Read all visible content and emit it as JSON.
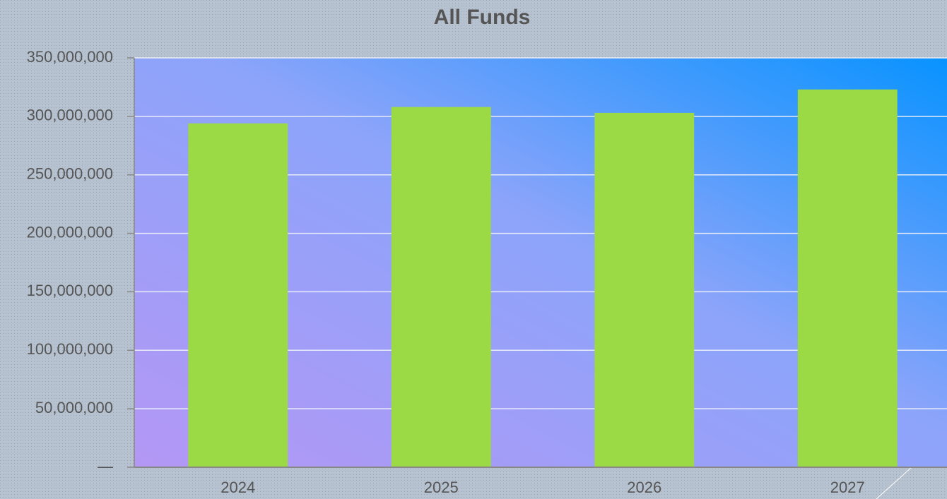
{
  "chart_data": {
    "type": "bar",
    "title": "All Funds",
    "categories": [
      "2024",
      "2025",
      "2026",
      "2027"
    ],
    "values": [
      294000000,
      308000000,
      303000000,
      323000000
    ],
    "color": "#9bd945",
    "ylim": [
      0,
      350000000
    ],
    "yticks": [
      {
        "value": 0,
        "label": "—"
      },
      {
        "value": 50000000,
        "label": "50,000,000"
      },
      {
        "value": 100000000,
        "label": "100,000,000"
      },
      {
        "value": 150000000,
        "label": "150,000,000"
      },
      {
        "value": 200000000,
        "label": "200,000,000"
      },
      {
        "value": 250000000,
        "label": "250,000,000"
      },
      {
        "value": 300000000,
        "label": "300,000,000"
      },
      {
        "value": 350000000,
        "label": "350,000,000"
      }
    ],
    "grid": true
  }
}
